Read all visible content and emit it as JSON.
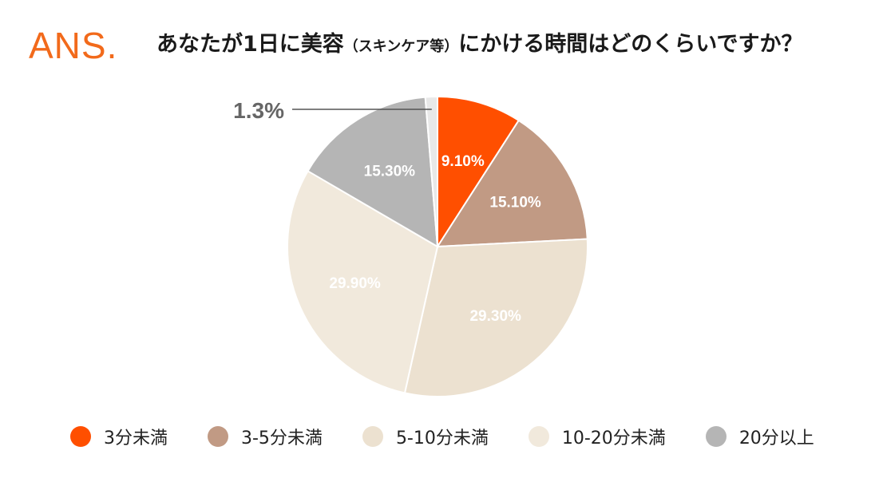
{
  "header": {
    "logo_text": "ANS.",
    "title_part1": "あなたが1日に美容",
    "title_part2": "（スキンケア等）",
    "title_part3": "にかける時間はどのくらいですか？"
  },
  "chart_data": {
    "type": "pie",
    "title": "あなたが1日に美容（スキンケア等）にかける時間はどのくらいですか？",
    "start_angle_deg": 0,
    "direction": "clockwise",
    "legend_position": "bottom",
    "slices": [
      {
        "label": "3分未満",
        "value": 9.1,
        "display": "9.10%",
        "color": "#ff4f00",
        "label_color": "#ffffff"
      },
      {
        "label": "3-5分未満",
        "value": 15.1,
        "display": "15.10%",
        "color": "#c19a84",
        "label_color": "#ffffff"
      },
      {
        "label": "5-10分未満",
        "value": 29.3,
        "display": "29.30%",
        "color": "#ece1d0",
        "label_color": "#ffffff"
      },
      {
        "label": "10-20分未満",
        "value": 29.9,
        "display": "29.90%",
        "color": "#f1e9dc",
        "label_color": "#ffffff"
      },
      {
        "label": "20分以上",
        "value": 15.3,
        "display": "15.30%",
        "color": "#b5b5b5",
        "label_color": "#ffffff"
      },
      {
        "label": "",
        "value": 1.3,
        "display": "1.3%",
        "color": "#e8e8e8",
        "label_color": "#666666",
        "callout": true
      }
    ]
  },
  "legend": {
    "items": [
      {
        "label": "3分未満",
        "color": "#ff4f00"
      },
      {
        "label": "3-5分未満",
        "color": "#c19a84"
      },
      {
        "label": "5-10分未満",
        "color": "#ece1d0"
      },
      {
        "label": "10-20分未満",
        "color": "#f1e9dc"
      },
      {
        "label": "20分以上",
        "color": "#b5b5b5"
      }
    ]
  }
}
